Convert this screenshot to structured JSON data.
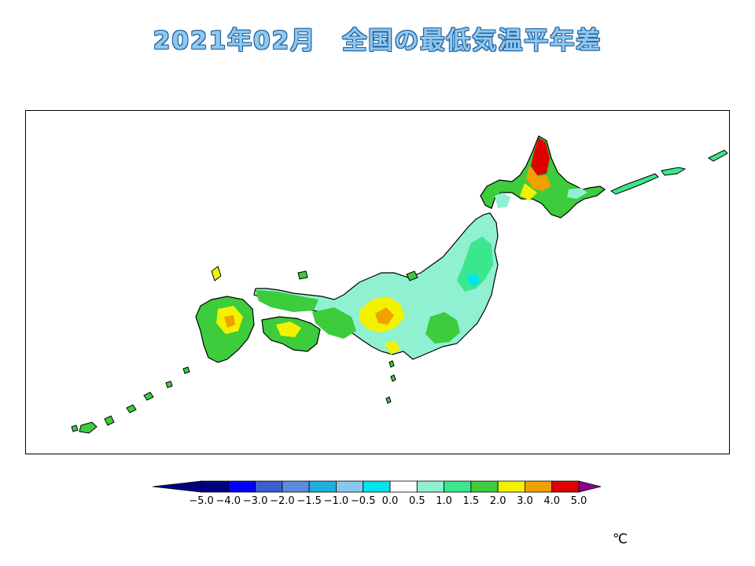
{
  "title": "2021年02月　全国の最低気温平年差",
  "map": {
    "region": "Japan",
    "colors": {
      "coast": "#000000",
      "prefecture_border": "#444444",
      "frame": "#000000"
    }
  },
  "legend": {
    "labels": [
      "−5.0",
      "−4.0",
      "−3.0",
      "−2.0",
      "−1.5",
      "−1.0",
      "−0.5",
      "0.0",
      "0.5",
      "1.0",
      "1.5",
      "2.0",
      "3.0",
      "4.0",
      "5.0"
    ],
    "colors": [
      "#000080",
      "#0000ff",
      "#3a5fcd",
      "#5b8bdc",
      "#1faee0",
      "#87c8f0",
      "#00e5ee",
      "#ffffff",
      "#8ff0d2",
      "#3ce68c",
      "#3ccc3c",
      "#f2f200",
      "#f0a000",
      "#e00000"
    ],
    "under_color": "#000080",
    "over_color": "#8b008b",
    "unit": "℃"
  }
}
